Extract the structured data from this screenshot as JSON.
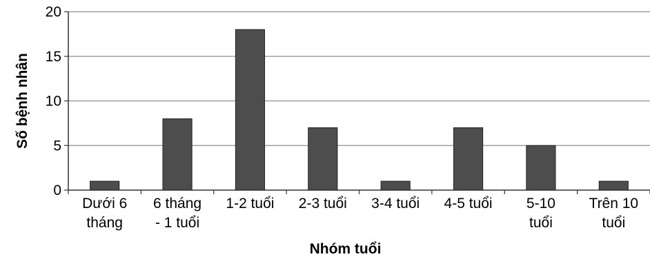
{
  "chart_data": {
    "type": "bar",
    "title": "",
    "xlabel": "Nhóm tuổi",
    "ylabel": "Số bệnh nhân",
    "ylim": [
      0,
      20
    ],
    "yticks": [
      0,
      5,
      10,
      15,
      20
    ],
    "grid": true,
    "categories": [
      [
        "Dưới 6",
        "tháng"
      ],
      [
        "6 tháng",
        "- 1 tuổi"
      ],
      [
        "1-2 tuổi"
      ],
      [
        "2-3 tuổi"
      ],
      [
        "3-4 tuổi"
      ],
      [
        "4-5 tuổi"
      ],
      [
        "5-10",
        "tuổi"
      ],
      [
        "Trên 10",
        "tuổi"
      ]
    ],
    "values": [
      1,
      8,
      18,
      7,
      1,
      7,
      5,
      1
    ],
    "colors": {
      "bar_fill": "#4d4d4d",
      "bar_stroke": "#222222",
      "grid": "#8f8f8f",
      "axis": "#333333",
      "text": "#000000",
      "background": "#ffffff"
    }
  }
}
